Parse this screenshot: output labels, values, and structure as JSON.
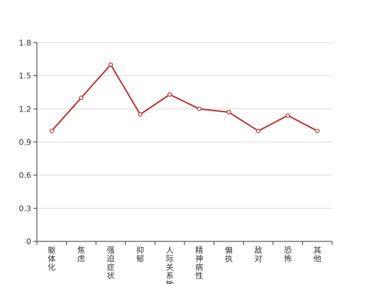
{
  "chart_data": {
    "type": "line",
    "categories": [
      "躯体化",
      "焦虑",
      "强迫症状",
      "抑郁",
      "人际关系敏感",
      "精神病性",
      "偏执",
      "敌对",
      "恐怖",
      "其他"
    ],
    "series": [
      {
        "values": [
          1.0,
          1.3,
          1.6,
          1.15,
          1.33,
          1.2,
          1.17,
          1.0,
          1.14,
          1.0
        ]
      }
    ],
    "title": "",
    "xlabel": "",
    "ylabel": "",
    "ylim": [
      0,
      1.8
    ],
    "yticks": [
      "0",
      "0.3",
      "0.6",
      "0.9",
      "1.2",
      "1.5",
      "1.8"
    ],
    "grid": true,
    "legend": "none",
    "colors": {
      "line": "#b53434",
      "grid": "#d9d9d9",
      "axis": "#333333",
      "marker_fill": "#ffffff"
    }
  }
}
